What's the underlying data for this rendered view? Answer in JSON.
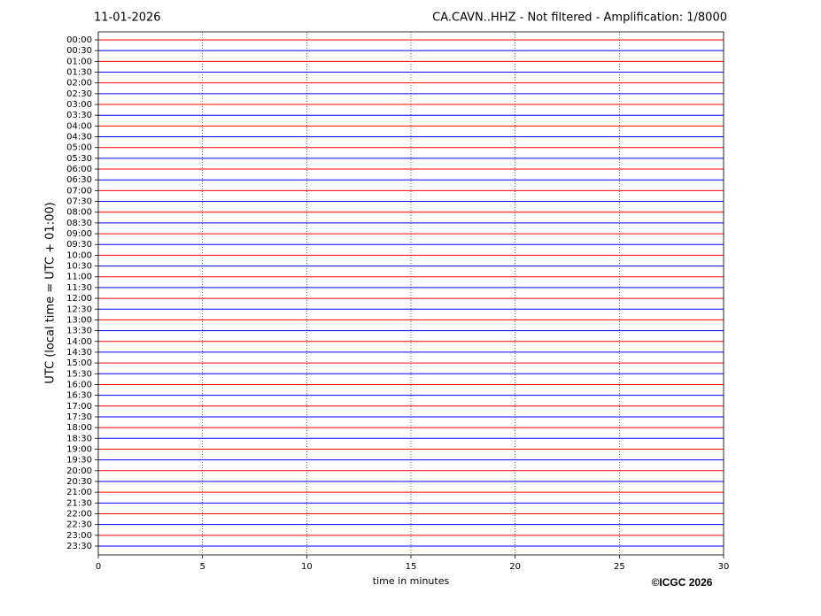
{
  "chart_data": {
    "type": "helicorder",
    "date": "11-01-2026",
    "title": "CA.CAVN..HHZ - Not filtered - Amplification: 1/8000",
    "ylabel": "UTC (local time = UTC + 01:00)",
    "xlabel": "time in minutes",
    "credit": "©ICGC 2026",
    "categories": [
      "00:00",
      "00:30",
      "01:00",
      "01:30",
      "02:00",
      "02:30",
      "03:00",
      "03:30",
      "04:00",
      "04:30",
      "05:00",
      "05:30",
      "06:00",
      "06:30",
      "07:00",
      "07:30",
      "08:00",
      "08:30",
      "09:00",
      "09:30",
      "10:00",
      "10:30",
      "11:00",
      "11:30",
      "12:00",
      "12:30",
      "13:00",
      "13:30",
      "14:00",
      "14:30",
      "15:00",
      "15:30",
      "16:00",
      "16:30",
      "17:00",
      "17:30",
      "18:00",
      "18:30",
      "19:00",
      "19:30",
      "20:00",
      "20:30",
      "21:00",
      "21:30",
      "22:00",
      "22:30",
      "23:00",
      "23:30"
    ],
    "colors": [
      "#ff0000",
      "#0000ff"
    ],
    "x": [
      0,
      30
    ],
    "values": [
      [
        0,
        0
      ],
      [
        0,
        0
      ],
      [
        0,
        0
      ],
      [
        0,
        0
      ],
      [
        0,
        0
      ],
      [
        0,
        0
      ],
      [
        0,
        0
      ],
      [
        0,
        0
      ],
      [
        0,
        0
      ],
      [
        0,
        0
      ],
      [
        0,
        0
      ],
      [
        0,
        0
      ],
      [
        0,
        0
      ],
      [
        0,
        0
      ],
      [
        0,
        0
      ],
      [
        0,
        0
      ],
      [
        0,
        0
      ],
      [
        0,
        0
      ],
      [
        0,
        0
      ],
      [
        0,
        0
      ],
      [
        0,
        0
      ],
      [
        0,
        0
      ],
      [
        0,
        0
      ],
      [
        0,
        0
      ],
      [
        0,
        0
      ],
      [
        0,
        0
      ],
      [
        0,
        0
      ],
      [
        0,
        0
      ],
      [
        0,
        0
      ],
      [
        0,
        0
      ],
      [
        0,
        0
      ],
      [
        0,
        0
      ],
      [
        0,
        0
      ],
      [
        0,
        0
      ],
      [
        0,
        0
      ],
      [
        0,
        0
      ],
      [
        0,
        0
      ],
      [
        0,
        0
      ],
      [
        0,
        0
      ],
      [
        0,
        0
      ],
      [
        0,
        0
      ],
      [
        0,
        0
      ],
      [
        0,
        0
      ],
      [
        0,
        0
      ],
      [
        0,
        0
      ],
      [
        0,
        0
      ],
      [
        0,
        0
      ],
      [
        0,
        0
      ]
    ],
    "xlim": [
      0,
      30
    ],
    "xticks": [
      0,
      5,
      10,
      15,
      20,
      25,
      30
    ],
    "grid": true
  }
}
